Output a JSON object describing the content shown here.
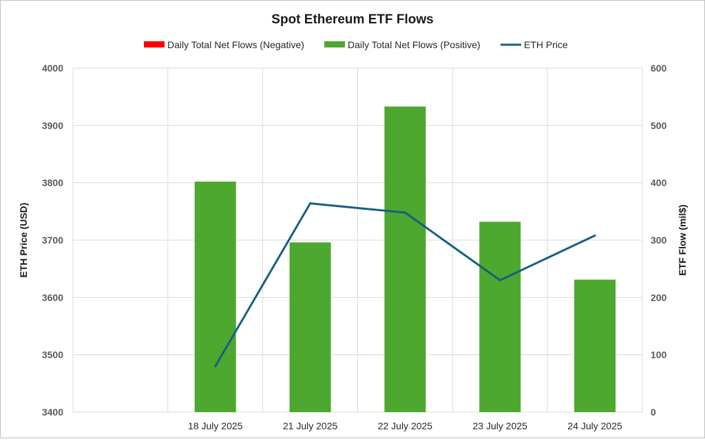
{
  "chart_data": {
    "type": "bar",
    "title": "Spot Ethereum ETF Flows",
    "categories": [
      "18 July 2025",
      "21 July 2025",
      "22 July 2025",
      "23 July 2025",
      "24 July 2025"
    ],
    "series": [
      {
        "name": "Daily Total Net Flows (Negative)",
        "kind": "bar",
        "axis": "right",
        "color": "#ff0000",
        "values": [
          0,
          0,
          0,
          0,
          0
        ]
      },
      {
        "name": "Daily Total Net Flows (Positive)",
        "kind": "bar",
        "axis": "right",
        "color": "#4ea72e",
        "values": [
          402,
          296,
          533,
          332,
          231
        ]
      },
      {
        "name": "ETH Price",
        "kind": "line",
        "axis": "left",
        "color": "#156082",
        "values": [
          3480,
          3764,
          3748,
          3630,
          3708
        ]
      }
    ],
    "ylabel_left": "ETH Price (USD)",
    "ylabel_right": "ETF Flow (mil$)",
    "ylim_left": [
      3400,
      4000
    ],
    "ylim_right": [
      0,
      600
    ],
    "yticks_left": [
      "3400",
      "3500",
      "3600",
      "3700",
      "3800",
      "3900",
      "4000"
    ],
    "yticks_right": [
      "0",
      "100",
      "200",
      "300",
      "400",
      "500",
      "600"
    ],
    "grid": true,
    "legend_position": "top"
  }
}
